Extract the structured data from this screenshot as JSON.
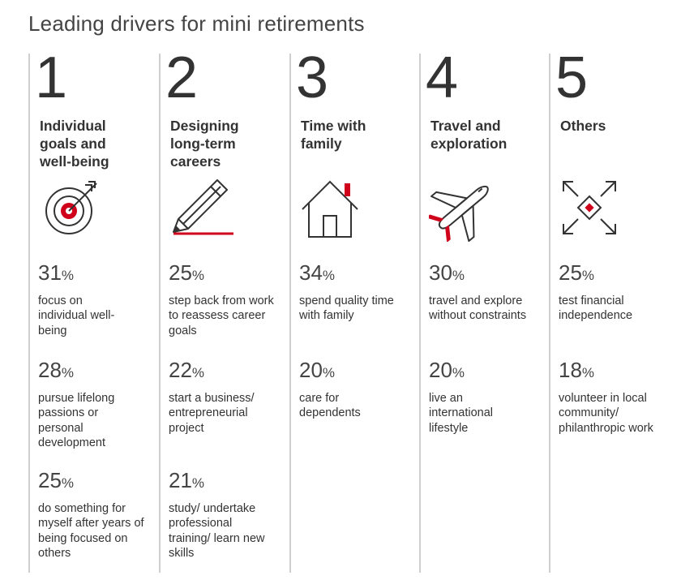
{
  "title": "Leading drivers for mini retirements",
  "accent_color": "#d0021b",
  "columns": [
    {
      "number": "1",
      "heading": "Individual goals and well-being",
      "icon": "target-icon",
      "stats": [
        {
          "value": "31",
          "unit": "%",
          "desc": "focus on individual well-being"
        },
        {
          "value": "28",
          "unit": "%",
          "desc": "pursue lifelong passions or personal development"
        },
        {
          "value": "25",
          "unit": "%",
          "desc": "do something for myself after years of being focused on others"
        }
      ]
    },
    {
      "number": "2",
      "heading": "Designing long-term careers",
      "icon": "pencil-icon",
      "stats": [
        {
          "value": "25",
          "unit": "%",
          "desc": "step back from work to reassess career goals"
        },
        {
          "value": "22",
          "unit": "%",
          "desc": "start a business/ entrepreneurial project"
        },
        {
          "value": "21",
          "unit": "%",
          "desc": "study/ undertake professional training/ learn new skills"
        }
      ]
    },
    {
      "number": "3",
      "heading": "Time with family",
      "icon": "house-icon",
      "stats": [
        {
          "value": "34",
          "unit": "%",
          "desc": "spend quality time with family"
        },
        {
          "value": "20",
          "unit": "%",
          "desc": "care for dependents"
        }
      ]
    },
    {
      "number": "4",
      "heading": "Travel and exploration",
      "icon": "airplane-icon",
      "stats": [
        {
          "value": "30",
          "unit": "%",
          "desc": "travel and explore without constraints"
        },
        {
          "value": "20",
          "unit": "%",
          "desc": "live an international lifestyle"
        }
      ]
    },
    {
      "number": "5",
      "heading": "Others",
      "icon": "expand-arrows-icon",
      "stats": [
        {
          "value": "25",
          "unit": "%",
          "desc": "test financial independence"
        },
        {
          "value": "18",
          "unit": "%",
          "desc": "volunteer in local community/ philanthropic work"
        }
      ]
    }
  ]
}
